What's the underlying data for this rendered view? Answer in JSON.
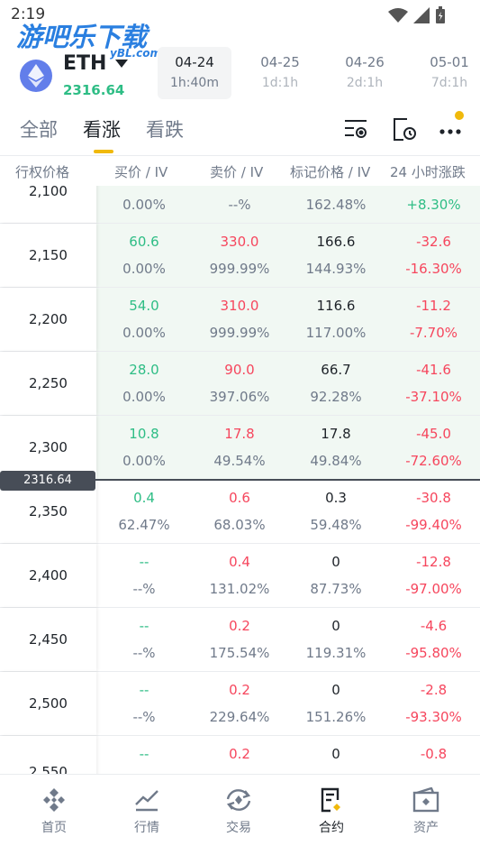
{
  "status": {
    "time": "2:19"
  },
  "watermark": {
    "text": "游吧乐下载",
    "sub": "yBL.com"
  },
  "header": {
    "asset": "ETH",
    "price": "2316.64",
    "expiries": [
      {
        "date": "04-24",
        "left": "1h:40m",
        "active": true
      },
      {
        "date": "04-25",
        "left": "1d:1h"
      },
      {
        "date": "04-26",
        "left": "2d:1h"
      },
      {
        "date": "05-01",
        "left": "7d:1h"
      }
    ]
  },
  "tabs": [
    {
      "label": "全部"
    },
    {
      "label": "看涨",
      "active": true
    },
    {
      "label": "看跌"
    }
  ],
  "columns": {
    "strike": "行权价格",
    "bid": "买价 / IV",
    "ask": "卖价 / IV",
    "mark": "标记价格 / IV",
    "change": "24 小时涨跌"
  },
  "price_tag": "2316.64",
  "rows": [
    {
      "strike": "2,100",
      "bid": "",
      "bid_iv": "0.00%",
      "ask": "",
      "ask_iv": "--%",
      "mark": "",
      "mark_iv": "162.48%",
      "chg": "",
      "chg_pct": "+8.30%"
    },
    {
      "strike": "2,150",
      "bid": "60.6",
      "bid_iv": "0.00%",
      "ask": "330.0",
      "ask_iv": "999.99%",
      "mark": "166.6",
      "mark_iv": "144.93%",
      "chg": "-32.6",
      "chg_pct": "-16.30%"
    },
    {
      "strike": "2,200",
      "bid": "54.0",
      "bid_iv": "0.00%",
      "ask": "310.0",
      "ask_iv": "999.99%",
      "mark": "116.6",
      "mark_iv": "117.00%",
      "chg": "-11.2",
      "chg_pct": "-7.70%"
    },
    {
      "strike": "2,250",
      "bid": "28.0",
      "bid_iv": "0.00%",
      "ask": "90.0",
      "ask_iv": "397.06%",
      "mark": "66.7",
      "mark_iv": "92.28%",
      "chg": "-41.6",
      "chg_pct": "-37.10%"
    },
    {
      "strike": "2,300",
      "bid": "10.8",
      "bid_iv": "0.00%",
      "ask": "17.8",
      "ask_iv": "49.54%",
      "mark": "17.8",
      "mark_iv": "49.84%",
      "chg": "-45.0",
      "chg_pct": "-72.60%"
    },
    {
      "strike": "2,350",
      "bid": "0.4",
      "bid_iv": "62.47%",
      "ask": "0.6",
      "ask_iv": "68.03%",
      "mark": "0.3",
      "mark_iv": "59.48%",
      "chg": "-30.8",
      "chg_pct": "-99.40%"
    },
    {
      "strike": "2,400",
      "bid": "--",
      "bid_iv": "--%",
      "ask": "0.4",
      "ask_iv": "131.02%",
      "mark": "0",
      "mark_iv": "87.73%",
      "chg": "-12.8",
      "chg_pct": "-97.00%"
    },
    {
      "strike": "2,450",
      "bid": "--",
      "bid_iv": "--%",
      "ask": "0.2",
      "ask_iv": "175.54%",
      "mark": "0",
      "mark_iv": "119.31%",
      "chg": "-4.6",
      "chg_pct": "-95.80%"
    },
    {
      "strike": "2,500",
      "bid": "--",
      "bid_iv": "--%",
      "ask": "0.2",
      "ask_iv": "229.64%",
      "mark": "0",
      "mark_iv": "151.26%",
      "chg": "-2.8",
      "chg_pct": "-93.30%"
    },
    {
      "strike": "2,550",
      "bid": "--",
      "bid_iv": "",
      "ask": "0.2",
      "ask_iv": "",
      "mark": "0",
      "mark_iv": "",
      "chg": "-0.8",
      "chg_pct": ""
    }
  ],
  "nav": [
    {
      "label": "首页",
      "icon": "home-icon"
    },
    {
      "label": "行情",
      "icon": "markets-icon"
    },
    {
      "label": "交易",
      "icon": "trade-icon"
    },
    {
      "label": "合约",
      "icon": "futures-icon",
      "active": true
    },
    {
      "label": "资产",
      "icon": "wallet-icon"
    }
  ],
  "colors": {
    "green": "#2ebd85",
    "red": "#f6465d",
    "accent": "#f0b90b"
  }
}
